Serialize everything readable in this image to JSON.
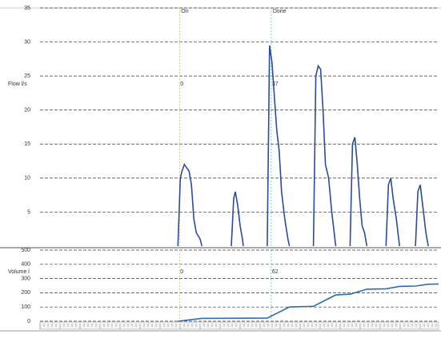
{
  "chart_data": [
    {
      "type": "line",
      "y_label": "Flow l/s",
      "x": [
        34.6,
        35.2,
        35.6,
        36.2,
        36.8,
        37.4,
        38.0,
        38.6,
        39.2,
        40.2,
        40.6,
        44.0,
        48.0,
        48.6,
        49.0,
        49.6,
        50.2,
        50.8,
        51.0,
        54.0,
        57.0,
        57.6,
        58.2,
        58.8,
        59.4,
        60.0,
        60.6,
        61.4,
        62.2,
        62.6,
        65.0,
        68.6,
        69.2,
        69.8,
        70.4,
        71.0,
        71.6,
        72.4,
        73.2,
        74.0,
        74.2,
        76.0,
        77.8,
        78.4,
        79.0,
        79.6,
        80.2,
        80.8,
        81.4,
        82.0,
        84.0,
        86.8,
        87.4,
        88.0,
        88.6,
        89.4,
        90.2,
        92.0,
        94.2,
        94.8,
        95.4,
        96.0,
        96.8,
        97.4
      ],
      "series": [
        {
          "name": "Flow",
          "color": "#2b4c9e",
          "values": [
            0,
            10,
            11,
            12,
            11.5,
            11,
            9,
            4,
            2,
            1,
            0,
            null,
            0,
            7,
            8,
            6,
            3,
            1,
            0,
            null,
            0,
            29.5,
            27,
            22,
            17,
            14,
            8,
            4,
            1,
            0,
            null,
            0,
            25,
            26.5,
            26,
            20,
            12,
            10,
            5,
            1,
            0,
            null,
            0,
            15,
            16,
            12,
            7,
            3,
            2,
            0,
            null,
            0,
            9,
            10,
            7,
            4,
            0,
            null,
            0,
            8,
            9,
            6,
            2,
            0
          ]
        }
      ],
      "xlim": [
        0,
        100
      ],
      "ylim": [
        0,
        35
      ],
      "yticks": [
        5,
        10,
        15,
        20,
        25,
        30,
        35
      ],
      "grid": true,
      "markers": [
        {
          "label": "On",
          "x": 35,
          "value": 0,
          "color": "#d8c27a"
        },
        {
          "label": "Done",
          "x": 58,
          "value": 37,
          "color": "#7fc8dc"
        }
      ]
    },
    {
      "type": "line",
      "y_label": "Volume l",
      "x": [
        34.6,
        40.6,
        57.0,
        62.6,
        68.6,
        74.2,
        77.8,
        82.0,
        86.8,
        90.2,
        94.2,
        97.4,
        100
      ],
      "series": [
        {
          "name": "Volume",
          "color": "#2b6ea8",
          "values": [
            0,
            20,
            22,
            100,
            105,
            185,
            190,
            225,
            228,
            245,
            247,
            260,
            262
          ]
        }
      ],
      "xlim": [
        0,
        100
      ],
      "ylim": [
        0,
        500
      ],
      "yticks": [
        0,
        100,
        200,
        300,
        400,
        500
      ],
      "grid": true,
      "markers": [
        {
          "x": 35,
          "value": 0,
          "color": "#d8c27a"
        },
        {
          "x": 58,
          "value": 62,
          "color": "#7fc8dc"
        }
      ]
    }
  ]
}
